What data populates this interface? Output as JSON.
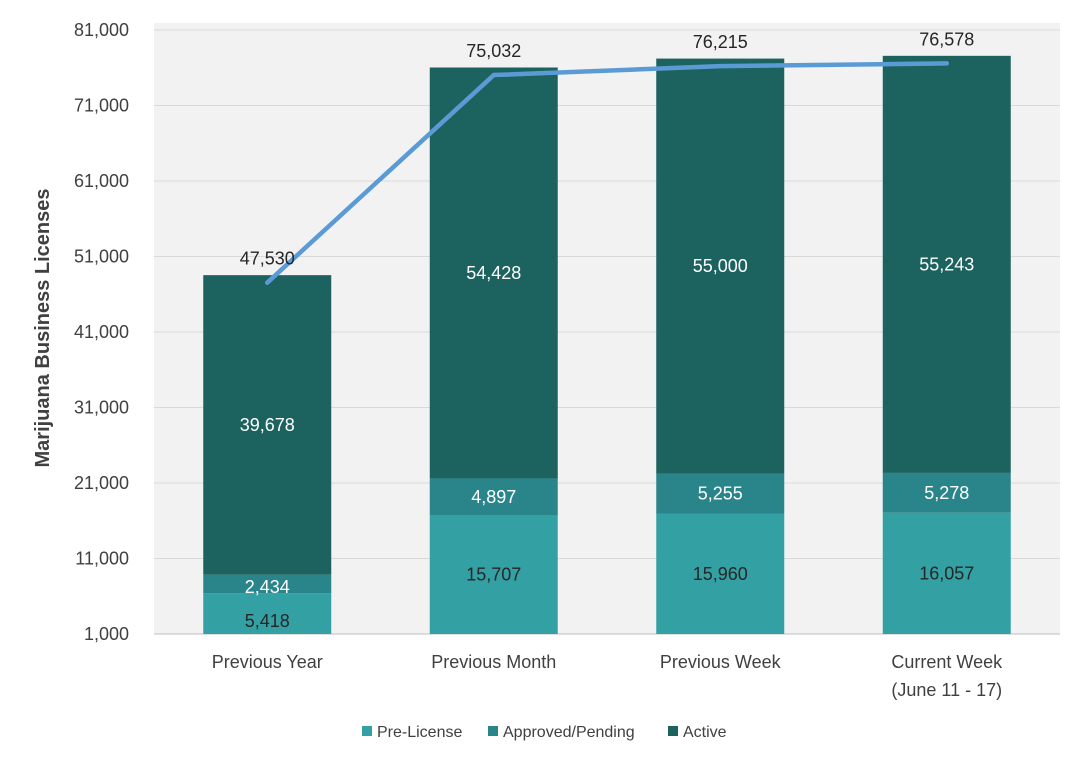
{
  "chart_data": {
    "type": "bar",
    "stacked": true,
    "ylabel": "Marijuana Business Licenses",
    "ylim": [
      1000,
      81000
    ],
    "yticks": [
      1000,
      11000,
      21000,
      31000,
      41000,
      51000,
      61000,
      71000,
      81000
    ],
    "ytick_labels": [
      "1,000",
      "11,000",
      "21,000",
      "31,000",
      "41,000",
      "51,000",
      "61,000",
      "71,000",
      "81,000"
    ],
    "categories": [
      [
        "Previous Year"
      ],
      [
        "Previous Month"
      ],
      [
        "Previous Week"
      ],
      [
        "Current Week",
        "(June 11 - 17)"
      ]
    ],
    "series": [
      {
        "name": "Pre-License",
        "color": "#33a1a4",
        "label_color": "#262626",
        "values": [
          5418,
          15707,
          15960,
          16057
        ],
        "labels": [
          "5,418",
          "15,707",
          "15,960",
          "16,057"
        ]
      },
      {
        "name": "Approved/Pending",
        "color": "#2a858b",
        "label_color": "#ffffff",
        "values": [
          2434,
          4897,
          5255,
          5278
        ],
        "labels": [
          "2,434",
          "4,897",
          "5,255",
          "5,278"
        ]
      },
      {
        "name": "Active",
        "color": "#1c6360",
        "label_color": "#ffffff",
        "values": [
          39678,
          54428,
          55000,
          55243
        ],
        "labels": [
          "39,678",
          "54,428",
          "55,000",
          "55,243"
        ]
      }
    ],
    "totals": {
      "name": "Total",
      "color": "#5b9bd5",
      "values": [
        47530,
        75032,
        76215,
        76578
      ],
      "labels": [
        "47,530",
        "75,032",
        "76,215",
        "76,578"
      ]
    },
    "plot_background": "#f2f2f2",
    "grid": true,
    "legend_position": "bottom"
  }
}
